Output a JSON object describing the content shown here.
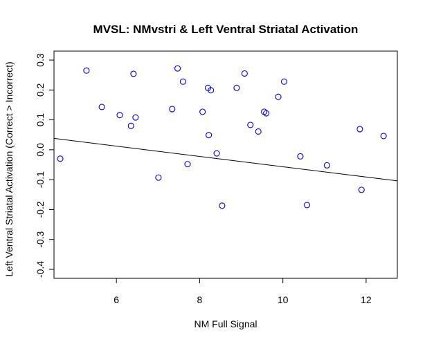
{
  "chart_data": {
    "type": "scatter",
    "title": "MVSL: NMvstri & Left Ventral Striatal Activation",
    "xlabel": "NM Full Signal",
    "ylabel": "Left Ventral Striatal Activation (Correct > Incorrect)",
    "xlim": [
      4.5,
      12.75
    ],
    "ylim": [
      -0.43,
      0.33
    ],
    "xticks": [
      6,
      8,
      10,
      12
    ],
    "yticks": [
      -0.4,
      -0.3,
      -0.2,
      -0.1,
      0.0,
      0.1,
      0.2,
      0.3
    ],
    "xtick_labels": [
      "6",
      "8",
      "10",
      "12"
    ],
    "ytick_labels": [
      "-0.4",
      "-0.3",
      "-0.2",
      "-0.1",
      "0.0",
      "0.1",
      "0.2",
      "0.3"
    ],
    "grid": false,
    "point_color": "#0000cc",
    "line_color": "#000000",
    "points": [
      {
        "x": 4.65,
        "y": -0.03
      },
      {
        "x": 5.28,
        "y": 0.265
      },
      {
        "x": 5.65,
        "y": 0.143
      },
      {
        "x": 6.08,
        "y": 0.116
      },
      {
        "x": 6.35,
        "y": 0.08
      },
      {
        "x": 6.41,
        "y": 0.254
      },
      {
        "x": 6.46,
        "y": 0.108
      },
      {
        "x": 7.01,
        "y": -0.093
      },
      {
        "x": 7.34,
        "y": 0.136
      },
      {
        "x": 7.47,
        "y": 0.272
      },
      {
        "x": 7.6,
        "y": 0.228
      },
      {
        "x": 7.71,
        "y": -0.048
      },
      {
        "x": 8.07,
        "y": 0.127
      },
      {
        "x": 8.2,
        "y": 0.207
      },
      {
        "x": 8.22,
        "y": 0.049
      },
      {
        "x": 8.27,
        "y": 0.199
      },
      {
        "x": 8.41,
        "y": -0.012
      },
      {
        "x": 8.54,
        "y": -0.187
      },
      {
        "x": 8.89,
        "y": 0.207
      },
      {
        "x": 9.08,
        "y": 0.255
      },
      {
        "x": 9.22,
        "y": 0.083
      },
      {
        "x": 9.41,
        "y": 0.061
      },
      {
        "x": 9.55,
        "y": 0.127
      },
      {
        "x": 9.6,
        "y": 0.122
      },
      {
        "x": 9.89,
        "y": 0.177
      },
      {
        "x": 10.03,
        "y": 0.228
      },
      {
        "x": 10.42,
        "y": -0.022
      },
      {
        "x": 10.58,
        "y": -0.185
      },
      {
        "x": 11.06,
        "y": -0.052
      },
      {
        "x": 11.85,
        "y": 0.069
      },
      {
        "x": 11.89,
        "y": -0.134
      },
      {
        "x": 12.42,
        "y": 0.046
      }
    ],
    "regression_line": {
      "x": [
        4.5,
        12.75
      ],
      "y": [
        0.038,
        -0.104
      ]
    }
  }
}
